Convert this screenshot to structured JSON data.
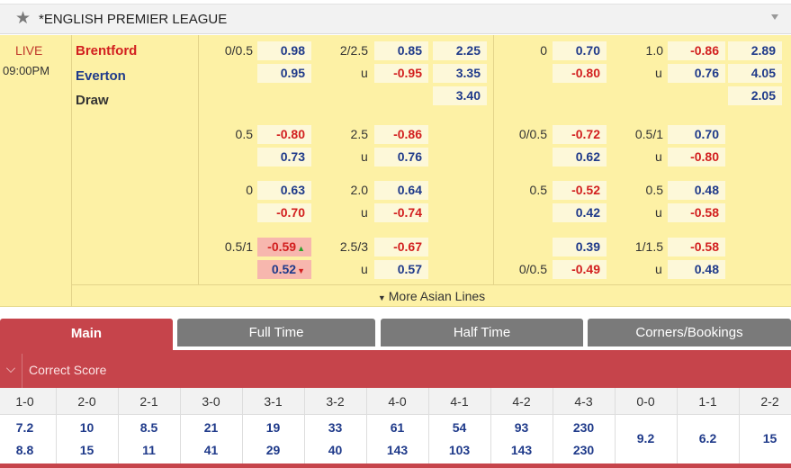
{
  "league": {
    "name": "*ENGLISH PREMIER LEAGUE"
  },
  "match": {
    "status": "LIVE",
    "time": "09:00PM",
    "home": "Brentford",
    "away": "Everton",
    "draw": "Draw"
  },
  "lines": [
    {
      "ft_hdp": "0/0.5",
      "ft_hdp_home": "0.98",
      "ft_hdp_away": "0.95",
      "ft_ou": "2/2.5",
      "ft_over": "0.85",
      "ft_u": "u",
      "ft_under": "-0.95",
      "ft_1x2": [
        "2.25",
        "3.35",
        "3.40"
      ],
      "ht_hdp": "0",
      "ht_hdp_home": "0.70",
      "ht_hdp_away": "-0.80",
      "ht_ou": "1.0",
      "ht_over": "-0.86",
      "ht_u": "u",
      "ht_under": "0.76",
      "ht_1x2": [
        "2.89",
        "4.05",
        "2.05"
      ]
    },
    {
      "ft_hdp": "0.5",
      "ft_hdp_home": "-0.80",
      "ft_hdp_away": "0.73",
      "ft_ou": "2.5",
      "ft_over": "-0.86",
      "ft_u": "u",
      "ft_under": "0.76",
      "ht_hdp": "0/0.5",
      "ht_hdp_home": "-0.72",
      "ht_hdp_away": "0.62",
      "ht_ou": "0.5/1",
      "ht_over": "0.70",
      "ht_u": "u",
      "ht_under": "-0.80"
    },
    {
      "ft_hdp": "0",
      "ft_hdp_home": "0.63",
      "ft_hdp_away": "-0.70",
      "ft_ou": "2.0",
      "ft_over": "0.64",
      "ft_u": "u",
      "ft_under": "-0.74",
      "ht_hdp": "0.5",
      "ht_hdp_home": "-0.52",
      "ht_hdp_away": "0.42",
      "ht_ou": "0.5",
      "ht_over": "0.48",
      "ht_u": "u",
      "ht_under": "-0.58"
    },
    {
      "ft_hdp": "0.5/1",
      "ft_hdp_home": "-0.59",
      "ft_hdp_away": "0.52",
      "ft_ou": "2.5/3",
      "ft_over": "-0.67",
      "ft_u": "u",
      "ft_under": "0.57",
      "ht_hdp_away_label": "0/0.5",
      "ht_hdp_home": "0.39",
      "ht_hdp_away": "-0.49",
      "ht_ou": "1/1.5",
      "ht_over": "-0.58",
      "ht_u": "u",
      "ht_under": "0.48"
    }
  ],
  "more_lines": "More Asian Lines",
  "tabs": {
    "main": "Main",
    "full_time": "Full Time",
    "half_time": "Half Time",
    "corners": "Corners/Bookings"
  },
  "correct_score": {
    "title": "Correct Score",
    "labels": [
      "1-0",
      "2-0",
      "2-1",
      "3-0",
      "3-1",
      "3-2",
      "4-0",
      "4-1",
      "4-2",
      "4-3",
      "0-0",
      "1-1",
      "2-2"
    ],
    "home": [
      "7.2",
      "10",
      "8.5",
      "21",
      "19",
      "33",
      "61",
      "54",
      "93",
      "230"
    ],
    "away": [
      "8.8",
      "15",
      "11",
      "41",
      "29",
      "40",
      "143",
      "103",
      "143",
      "230"
    ],
    "draws": [
      "9.2",
      "6.2",
      "15"
    ]
  },
  "colors": {
    "accent": "#c6444b",
    "row_bg": "#fdf1a5",
    "negative": "#d21f1f",
    "positive": "#1f3a8a"
  }
}
